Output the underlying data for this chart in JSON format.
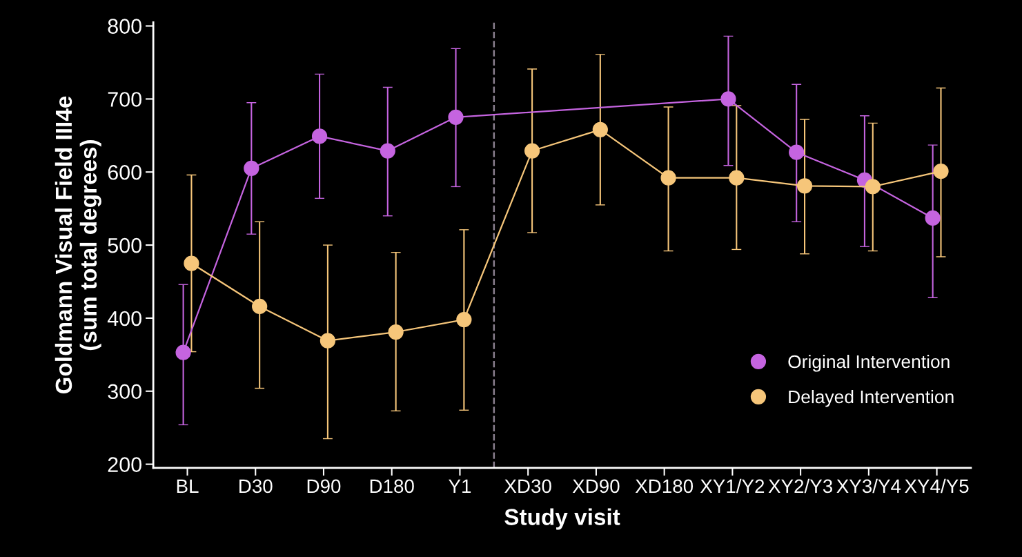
{
  "chart_data": {
    "type": "line",
    "xlabel": "Study visit",
    "ylabel": "Goldmann Visual Field III4e\n(sum total degrees)",
    "categories": [
      "BL",
      "D30",
      "D90",
      "D180",
      "Y1",
      "XD30",
      "XD90",
      "XD180",
      "XY1/Y2",
      "XY2/Y3",
      "XY3/Y4",
      "XY4/Y5"
    ],
    "ylim": [
      195,
      805
    ],
    "yticks": [
      200,
      300,
      400,
      500,
      600,
      700,
      800
    ],
    "marker": "circle",
    "line_style": "solid",
    "grid": false,
    "legend": "bottom right",
    "series": [
      {
        "name": "Original Intervention",
        "color": "#c564e0",
        "values": [
          353,
          605,
          649,
          629,
          675,
          null,
          null,
          null,
          700,
          627,
          589,
          537
        ],
        "errors": [
          [
            254,
            446
          ],
          [
            515,
            695
          ],
          [
            564,
            734
          ],
          [
            540,
            716
          ],
          [
            580,
            769
          ],
          null,
          null,
          null,
          [
            609,
            786
          ],
          [
            532,
            720
          ],
          [
            498,
            677
          ],
          [
            428,
            637
          ]
        ]
      },
      {
        "name": "Delayed Intervention",
        "color": "#f6c67a",
        "values": [
          475,
          416,
          369,
          381,
          398,
          629,
          658,
          592,
          592,
          581,
          580,
          601
        ],
        "errors": [
          [
            354,
            596
          ],
          [
            304,
            532
          ],
          [
            235,
            500
          ],
          [
            273,
            490
          ],
          [
            274,
            521
          ],
          [
            517,
            741
          ],
          [
            555,
            761
          ],
          [
            492,
            689
          ],
          [
            494,
            691
          ],
          [
            488,
            672
          ],
          [
            492,
            667
          ],
          [
            484,
            715
          ]
        ]
      }
    ]
  }
}
